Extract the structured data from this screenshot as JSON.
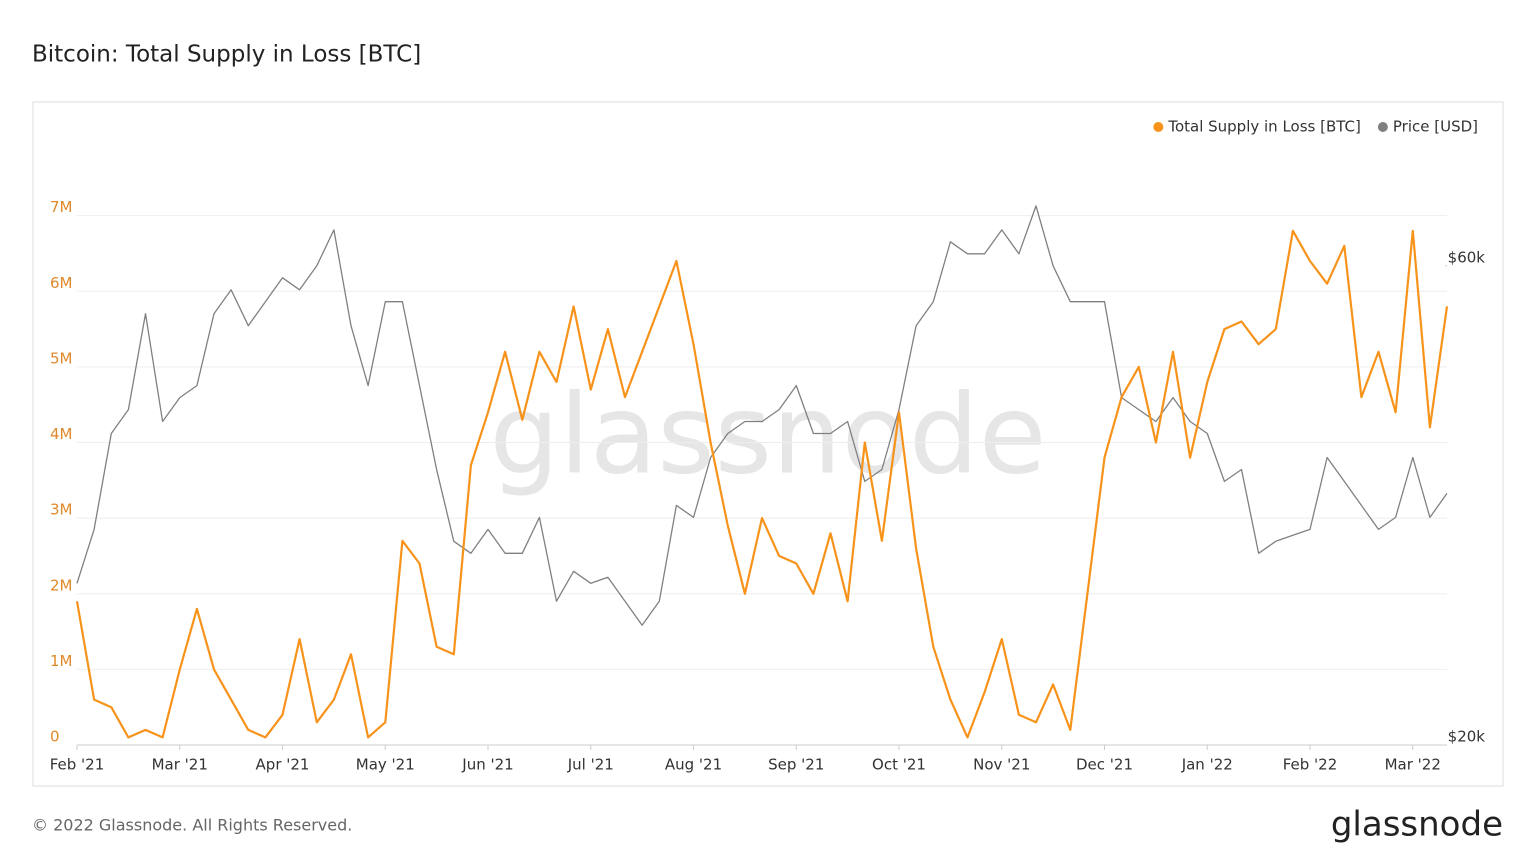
{
  "chart_data": {
    "type": "line",
    "title": "Bitcoin: Total Supply in Loss [BTC]",
    "watermark": "glassnode",
    "categories": [
      "Feb '21",
      null,
      null,
      null,
      null,
      null,
      "Mar '21",
      null,
      null,
      null,
      null,
      null,
      "Apr '21",
      null,
      null,
      null,
      null,
      null,
      "May '21",
      null,
      null,
      null,
      null,
      null,
      "Jun '21",
      null,
      null,
      null,
      null,
      null,
      "Jul '21",
      null,
      null,
      null,
      null,
      null,
      "Aug '21",
      null,
      null,
      null,
      null,
      null,
      "Sep '21",
      null,
      null,
      null,
      null,
      null,
      "Oct '21",
      null,
      null,
      null,
      null,
      null,
      "Nov '21",
      null,
      null,
      null,
      null,
      null,
      "Dec '21",
      null,
      null,
      null,
      null,
      null,
      "Jan '22",
      null,
      null,
      null,
      null,
      null,
      "Feb '22",
      null,
      null,
      null,
      null,
      null,
      "Mar '22",
      null,
      null
    ],
    "series": [
      {
        "name": "Total Supply in Loss [BTC]",
        "color": "#f7931a",
        "axis": "y",
        "values": [
          1900000,
          600000,
          500000,
          100000,
          200000,
          100000,
          1000000,
          1800000,
          1000000,
          600000,
          200000,
          100000,
          400000,
          1400000,
          300000,
          600000,
          1200000,
          100000,
          300000,
          2700000,
          2400000,
          1300000,
          1200000,
          3700000,
          4400000,
          5200000,
          4300000,
          5200000,
          4800000,
          5800000,
          4700000,
          5500000,
          4600000,
          5200000,
          5800000,
          6400000,
          5300000,
          4000000,
          2900000,
          2000000,
          3000000,
          2500000,
          2400000,
          2000000,
          2800000,
          1900000,
          4000000,
          2700000,
          4400000,
          2600000,
          1300000,
          600000,
          100000,
          700000,
          1400000,
          400000,
          300000,
          800000,
          200000,
          2000000,
          3800000,
          4600000,
          5000000,
          4000000,
          5200000,
          3800000,
          4800000,
          5500000,
          5600000,
          5300000,
          5500000,
          6800000,
          6400000,
          6100000,
          6600000,
          4600000,
          5200000,
          4400000,
          6800000,
          4200000,
          5800000
        ]
      },
      {
        "name": "Price [USD]",
        "color": "#808080",
        "axis": "y2",
        "values": [
          33500,
          38000,
          46000,
          48000,
          56000,
          47000,
          49000,
          50000,
          56000,
          58000,
          55000,
          57000,
          59000,
          58000,
          60000,
          63000,
          55000,
          50000,
          57000,
          57000,
          50000,
          43000,
          37000,
          36000,
          38000,
          36000,
          36000,
          39000,
          32000,
          34500,
          33500,
          34000,
          32000,
          30000,
          32000,
          40000,
          39000,
          44000,
          46000,
          47000,
          47000,
          48000,
          50000,
          46000,
          46000,
          47000,
          42000,
          43000,
          48000,
          55000,
          57000,
          62000,
          61000,
          61000,
          63000,
          61000,
          65000,
          60000,
          57000,
          57000,
          57000,
          49000,
          48000,
          47000,
          49000,
          47000,
          46000,
          42000,
          43000,
          36000,
          37000,
          37500,
          38000,
          44000,
          42000,
          40000,
          38000,
          39000,
          44000,
          39000,
          41000
        ]
      }
    ],
    "ylim": [
      0,
      8000000
    ],
    "yticks": [
      0,
      {
        "value": 1000000,
        "label": "1M"
      },
      {
        "value": 2000000,
        "label": "2M"
      },
      {
        "value": 3000000,
        "label": "3M"
      },
      {
        "value": 4000000,
        "label": "4M"
      },
      {
        "value": 5000000,
        "label": "5M"
      },
      {
        "value": 6000000,
        "label": "6M"
      },
      {
        "value": 7000000,
        "label": "7M"
      }
    ],
    "y2lim": [
      20000,
      70500
    ],
    "y2ticks": [
      {
        "value": 20000,
        "label": "$20k"
      },
      {
        "value": 60000,
        "label": "$60k"
      }
    ],
    "grid": true,
    "legend": "top-right"
  },
  "footer": "© 2022 Glassnode. All Rights Reserved.",
  "brand": "glassnode"
}
